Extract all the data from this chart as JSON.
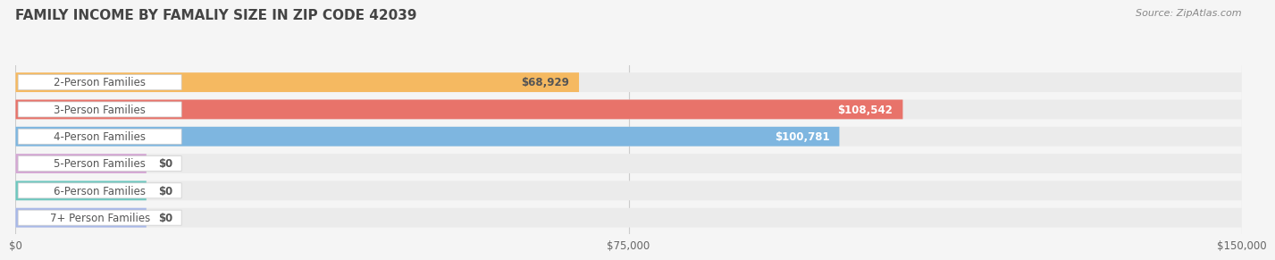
{
  "title": "FAMILY INCOME BY FAMALIY SIZE IN ZIP CODE 42039",
  "source": "Source: ZipAtlas.com",
  "categories": [
    "2-Person Families",
    "3-Person Families",
    "4-Person Families",
    "5-Person Families",
    "6-Person Families",
    "7+ Person Families"
  ],
  "values": [
    68929,
    108542,
    100781,
    0,
    0,
    0
  ],
  "bar_colors": [
    "#F5B961",
    "#E8736A",
    "#7EB6E0",
    "#D4A8D4",
    "#6EC8BF",
    "#A8B8E8"
  ],
  "label_colors": [
    "#555555",
    "#ffffff",
    "#ffffff",
    "#555555",
    "#555555",
    "#555555"
  ],
  "value_labels": [
    "$68,929",
    "$108,542",
    "$100,781",
    "$0",
    "$0",
    "$0"
  ],
  "xlim": [
    0,
    150000
  ],
  "xticks": [
    0,
    75000,
    150000
  ],
  "xtick_labels": [
    "$0",
    "$75,000",
    "$150,000"
  ],
  "bg_color": "#f5f5f5",
  "bar_bg_color": "#ebebeb",
  "title_color": "#444444",
  "title_fontsize": 11,
  "source_fontsize": 8,
  "label_fontsize": 8.5,
  "value_fontsize": 8.5,
  "zero_bar_width": 16000
}
